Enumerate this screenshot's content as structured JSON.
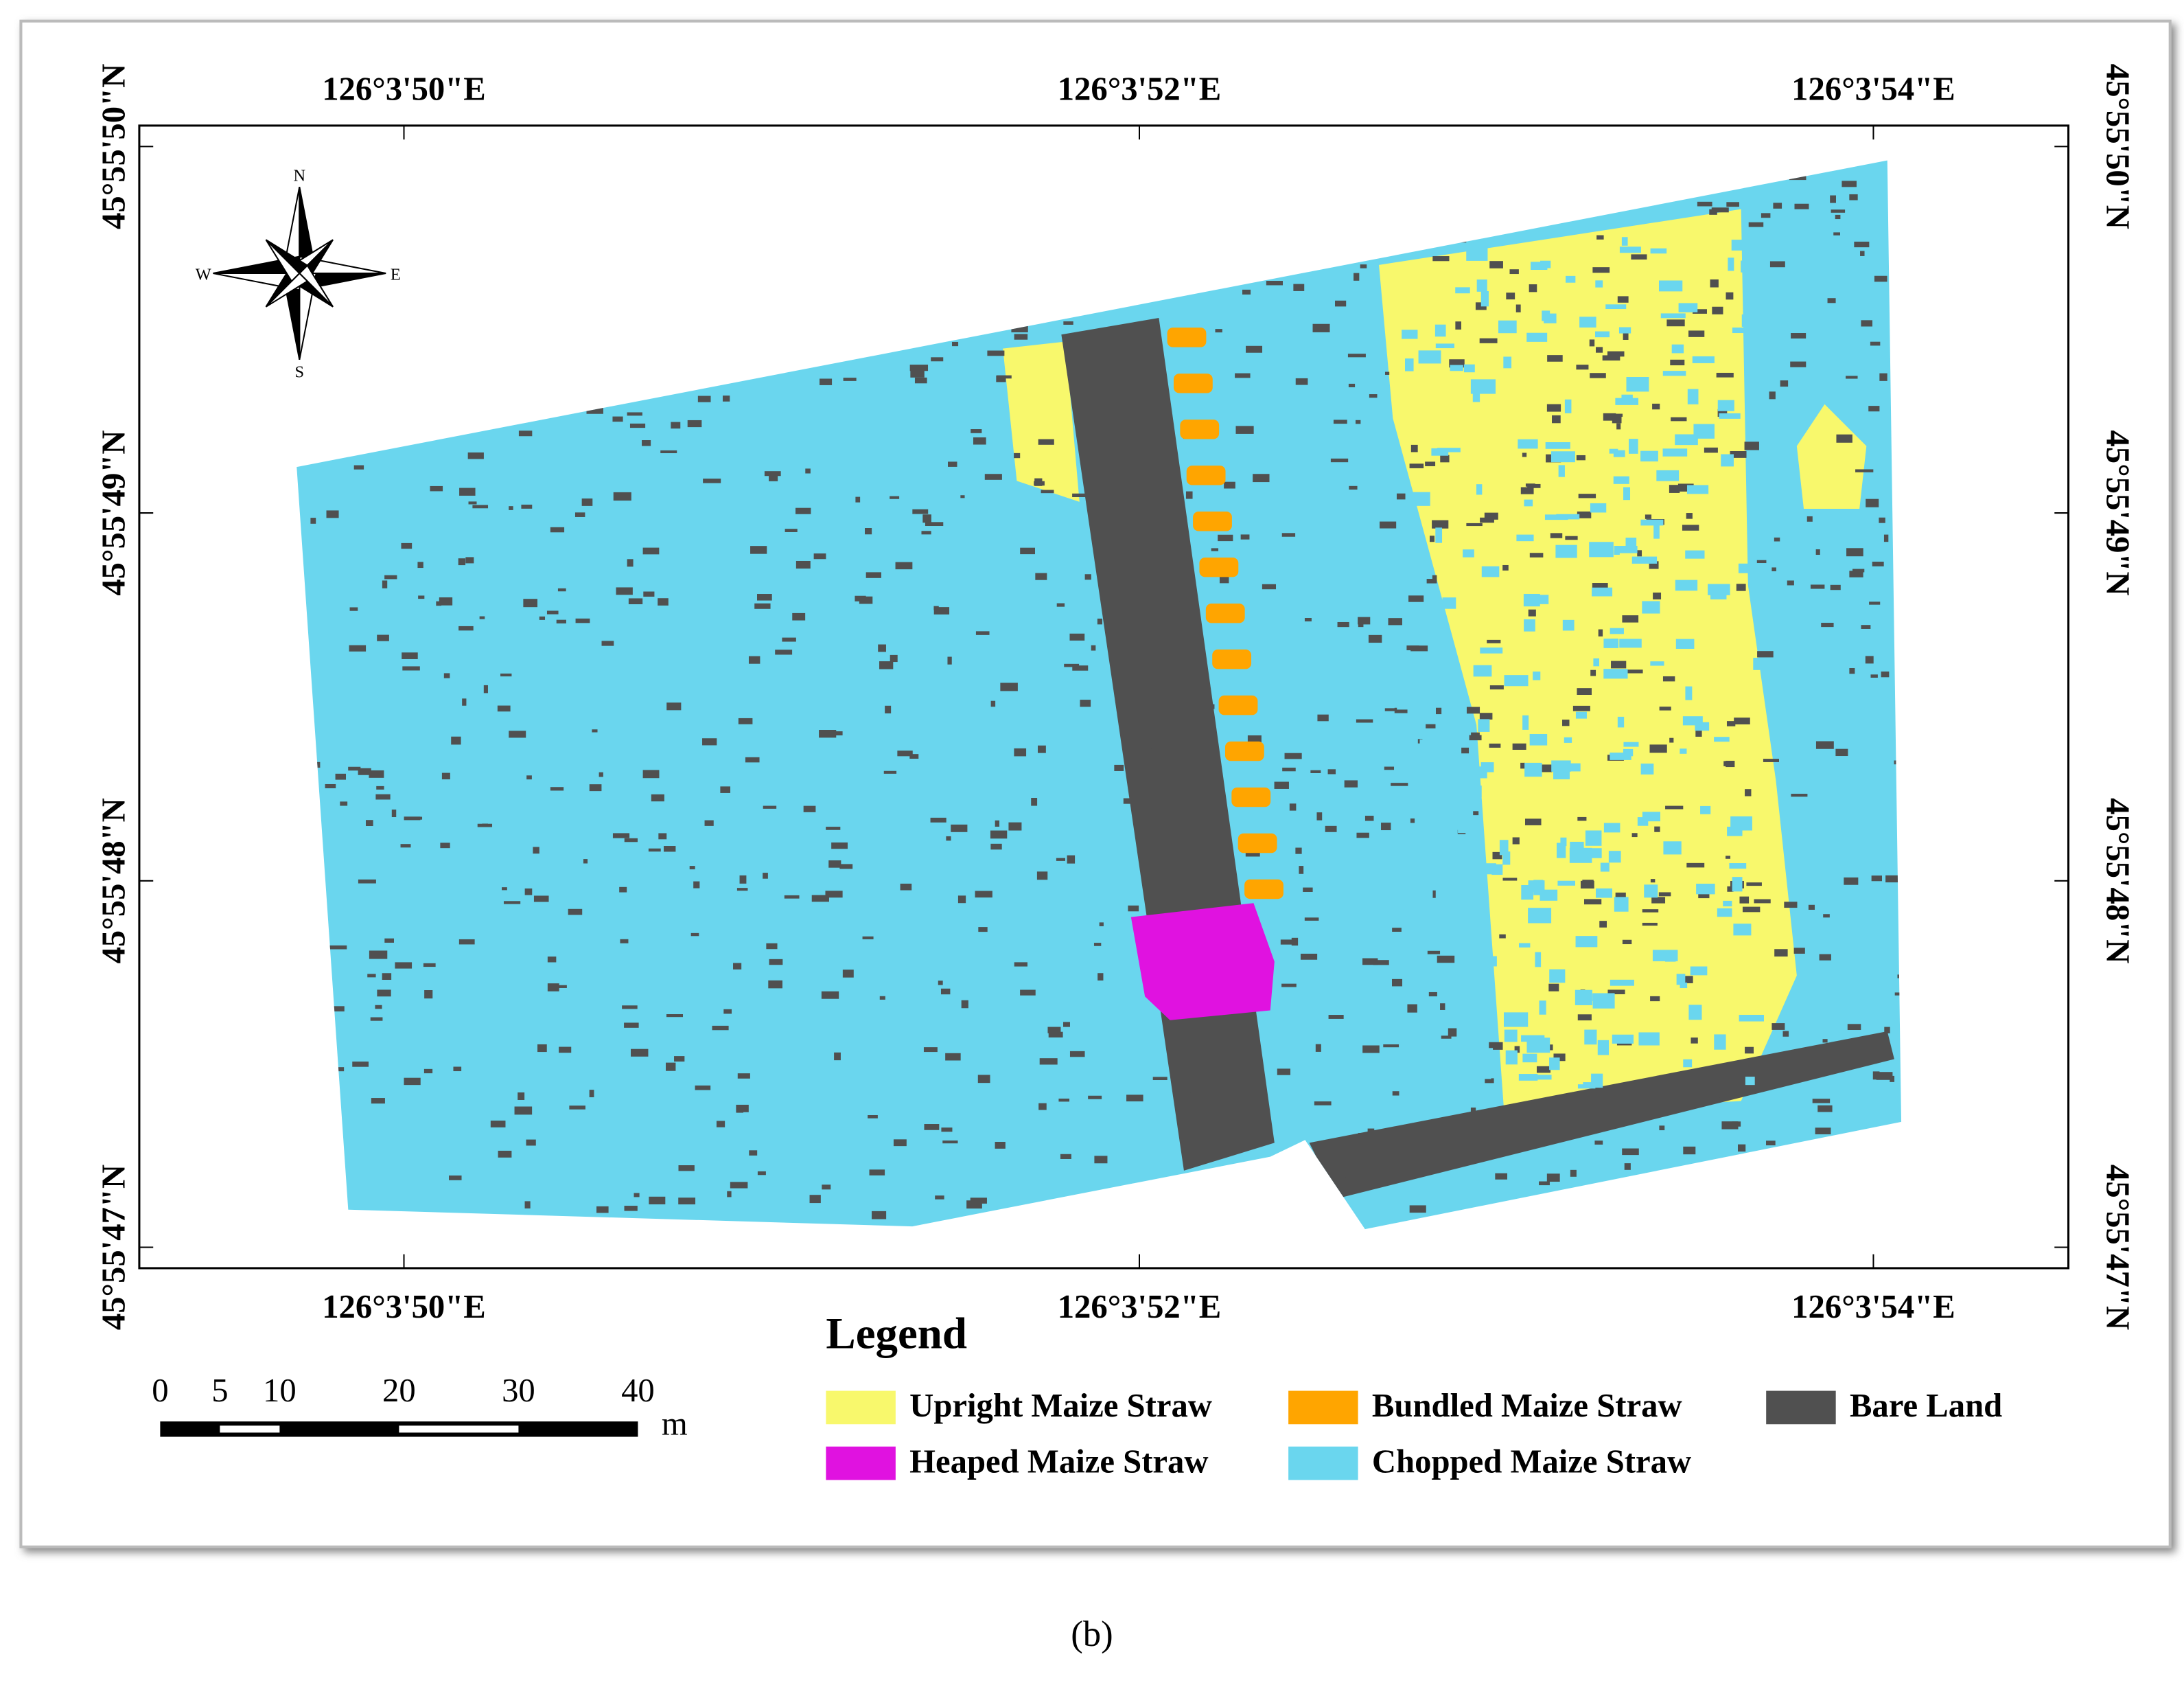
{
  "map": {
    "top_labels": [
      "126°3'50\"E",
      "126°3'52\"E",
      "126°3'54\"E"
    ],
    "bottom_labels": [
      "126°3'50\"E",
      "126°3'52\"E",
      "126°3'54\"E"
    ],
    "left_labels": [
      "45°55'50\"N",
      "45°55'49\"N",
      "45°55'48\"N",
      "45°55'47\"N"
    ],
    "right_labels": [
      "45°55'50\"N",
      "45°55'49\"N",
      "45°55'48\"N",
      "45°55'47\"N"
    ],
    "compass": [
      "N",
      "E",
      "S",
      "W"
    ],
    "scale_bar": {
      "ticks": [
        0,
        5,
        10,
        20,
        30,
        40
      ],
      "unit": "m"
    },
    "legend": {
      "title": "Legend",
      "items": [
        {
          "label": "Upright Maize Straw",
          "color": "#f8f86c"
        },
        {
          "label": "Bundled Maize Straw",
          "color": "#ffa500"
        },
        {
          "label": "Bare Land",
          "color": "#505050"
        },
        {
          "label": "Heaped Maize Straw",
          "color": "#e012e0"
        },
        {
          "label": "Chopped Maize Straw",
          "color": "#6ad6ee"
        }
      ]
    }
  },
  "caption": "(b)"
}
